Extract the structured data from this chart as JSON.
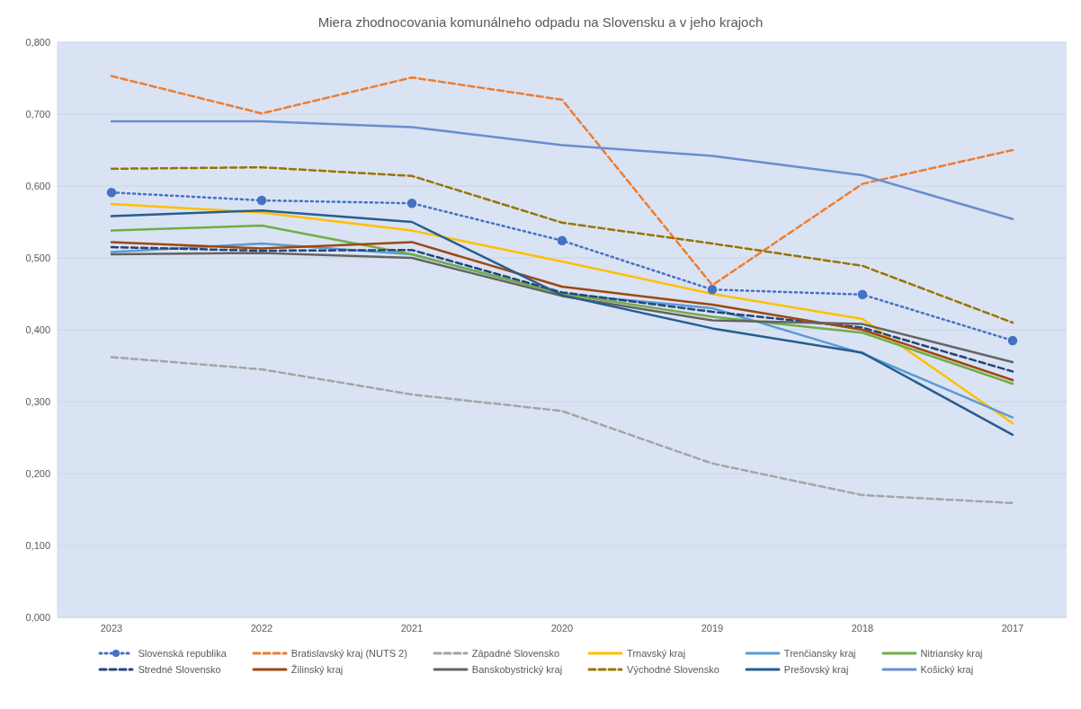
{
  "chart_data": {
    "type": "line",
    "title": "Miera zhodnocovania komunálneho odpadu na Slovensku a v jeho krajoch",
    "categories": [
      "2023",
      "2022",
      "2021",
      "2020",
      "2019",
      "2018",
      "2017"
    ],
    "ylim": [
      0,
      0.8
    ],
    "yticks": [
      {
        "value": 0,
        "label": "0,000"
      },
      {
        "value": 0.1,
        "label": "0,100"
      },
      {
        "value": 0.2,
        "label": "0,200"
      },
      {
        "value": 0.3,
        "label": "0,300"
      },
      {
        "value": 0.4,
        "label": "0,400"
      },
      {
        "value": 0.5,
        "label": "0,500"
      },
      {
        "value": 0.6,
        "label": "0,600"
      },
      {
        "value": 0.7,
        "label": "0,700"
      },
      {
        "value": 0.8,
        "label": "0,800"
      }
    ],
    "grid": "y",
    "legend": "bottom",
    "series": [
      {
        "name": "Slovenská republika",
        "color": "#4472c4",
        "line_style": "dotted",
        "marker": "circle",
        "values": [
          0.591,
          0.58,
          0.576,
          0.524,
          0.456,
          0.449,
          0.385
        ]
      },
      {
        "name": "Bratislavský kraj (NUTS 2)",
        "color": "#ed7d31",
        "line_style": "dashed",
        "values": [
          0.753,
          0.701,
          0.751,
          0.72,
          0.462,
          0.603,
          0.65
        ]
      },
      {
        "name": "Západné Slovensko",
        "color": "#a5a5a5",
        "line_style": "dashed",
        "values": [
          0.362,
          0.345,
          0.31,
          0.287,
          0.214,
          0.17,
          0.159
        ]
      },
      {
        "name": "Trnavský kraj",
        "color": "#ffc000",
        "line_style": "solid",
        "values": [
          0.575,
          0.563,
          0.538,
          0.495,
          0.45,
          0.415,
          0.27
        ]
      },
      {
        "name": "Trenčiansky kraj",
        "color": "#5b9bd5",
        "line_style": "solid",
        "values": [
          0.508,
          0.52,
          0.505,
          0.45,
          0.43,
          0.367,
          0.278
        ]
      },
      {
        "name": "Nitriansky kraj",
        "color": "#70ad47",
        "line_style": "solid",
        "values": [
          0.538,
          0.545,
          0.505,
          0.45,
          0.418,
          0.396,
          0.325
        ]
      },
      {
        "name": "Stredné Slovensko",
        "color": "#264478",
        "line_style": "dashed",
        "values": [
          0.515,
          0.51,
          0.511,
          0.452,
          0.425,
          0.403,
          0.342
        ]
      },
      {
        "name": "Žilinský kraj",
        "color": "#9e480e",
        "line_style": "solid",
        "values": [
          0.522,
          0.513,
          0.522,
          0.46,
          0.435,
          0.4,
          0.33
        ]
      },
      {
        "name": "Banskobystrický kraj",
        "color": "#636363",
        "line_style": "solid",
        "values": [
          0.505,
          0.507,
          0.5,
          0.447,
          0.413,
          0.408,
          0.355
        ]
      },
      {
        "name": "Východné Slovensko",
        "color": "#997300",
        "line_style": "dashed",
        "values": [
          0.624,
          0.626,
          0.614,
          0.549,
          0.52,
          0.489,
          0.41
        ]
      },
      {
        "name": "Prešovský kraj",
        "color": "#255e91",
        "line_style": "solid",
        "values": [
          0.558,
          0.566,
          0.55,
          0.448,
          0.402,
          0.368,
          0.254
        ]
      },
      {
        "name": "Košický kraj",
        "color": "#698ed0",
        "line_style": "solid",
        "values": [
          0.69,
          0.69,
          0.682,
          0.657,
          0.642,
          0.615,
          0.554
        ]
      }
    ]
  }
}
